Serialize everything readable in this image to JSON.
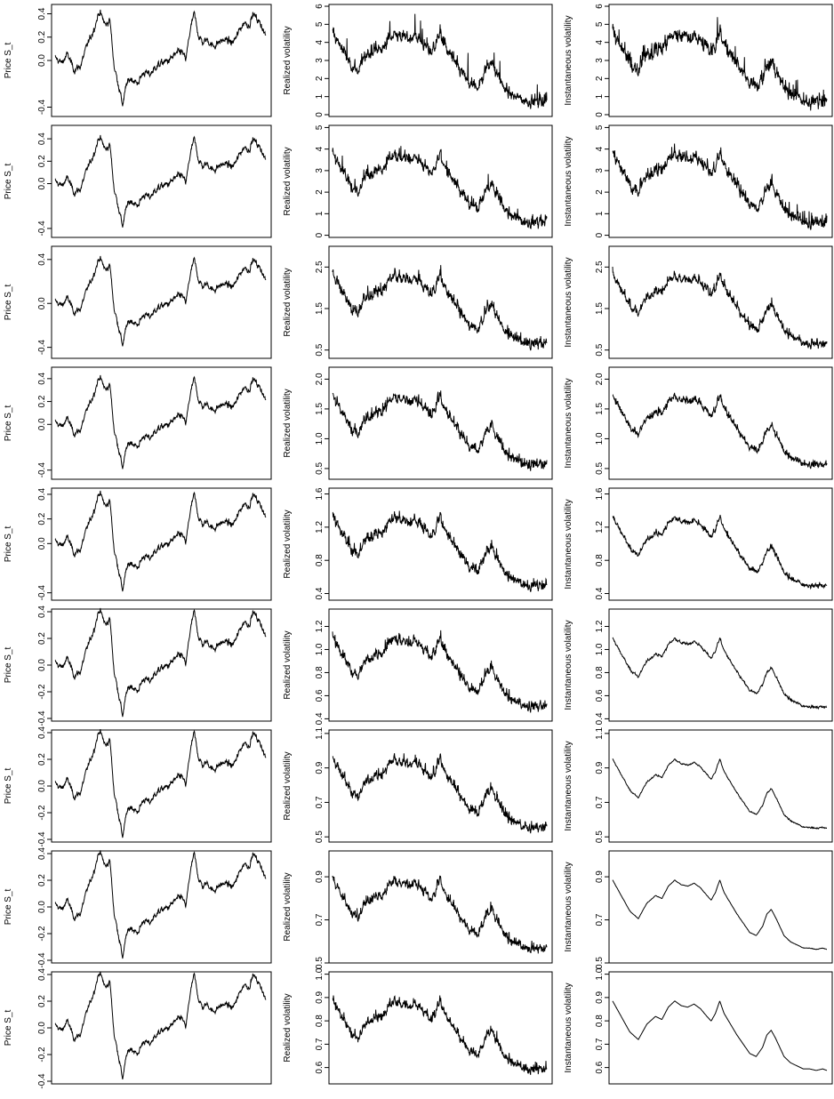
{
  "chart_data": {
    "type": "line",
    "layout": {
      "rows": 9,
      "columns": 3
    },
    "ylabels": [
      "Price S_t",
      "Realized volatility",
      "Instantaneous volatility"
    ],
    "columns": [
      {
        "ylabel": "Price S_t",
        "panels": [
          {
            "ylim": [
              -0.48,
              0.48
            ],
            "ticks": [
              {
                "v": 0.4,
                "label": "0.4"
              },
              {
                "v": 0.2,
                "label": "0.2"
              },
              {
                "v": 0.0,
                "label": "0.0"
              },
              {
                "v": -0.4,
                "label": "-0.4"
              }
            ]
          },
          {
            "ylim": [
              -0.48,
              0.52
            ],
            "ticks": [
              {
                "v": 0.4,
                "label": "0.4"
              },
              {
                "v": 0.2,
                "label": "0.2"
              },
              {
                "v": 0.0,
                "label": "0.0"
              },
              {
                "v": -0.4,
                "label": "-0.4"
              }
            ]
          },
          {
            "ylim": [
              -0.5,
              0.52
            ],
            "ticks": [
              {
                "v": 0.4,
                "label": "0.4"
              },
              {
                "v": 0.0,
                "label": "0.0"
              },
              {
                "v": -0.4,
                "label": "-0.4"
              }
            ]
          },
          {
            "ylim": [
              -0.48,
              0.5
            ],
            "ticks": [
              {
                "v": 0.4,
                "label": "0.4"
              },
              {
                "v": 0.2,
                "label": "0.2"
              },
              {
                "v": 0.0,
                "label": "0.0"
              },
              {
                "v": -0.4,
                "label": "-0.4"
              }
            ]
          },
          {
            "ylim": [
              -0.46,
              0.45
            ],
            "ticks": [
              {
                "v": 0.4,
                "label": "0.4"
              },
              {
                "v": 0.2,
                "label": "0.2"
              },
              {
                "v": 0.0,
                "label": "0.0"
              },
              {
                "v": -0.4,
                "label": "-0.4"
              }
            ]
          },
          {
            "ylim": [
              -0.42,
              0.42
            ],
            "ticks": [
              {
                "v": 0.4,
                "label": "0.4"
              },
              {
                "v": 0.2,
                "label": "0.2"
              },
              {
                "v": 0.0,
                "label": "0.0"
              },
              {
                "v": -0.2,
                "label": "-0.2"
              },
              {
                "v": -0.4,
                "label": "-0.4"
              }
            ]
          },
          {
            "ylim": [
              -0.42,
              0.42
            ],
            "ticks": [
              {
                "v": 0.4,
                "label": "0.4"
              },
              {
                "v": 0.2,
                "label": "0.2"
              },
              {
                "v": 0.0,
                "label": "0.0"
              },
              {
                "v": -0.2,
                "label": "-0.2"
              },
              {
                "v": -0.4,
                "label": "-0.4"
              }
            ]
          },
          {
            "ylim": [
              -0.42,
              0.42
            ],
            "ticks": [
              {
                "v": 0.4,
                "label": "0.4"
              },
              {
                "v": 0.2,
                "label": "0.2"
              },
              {
                "v": 0.0,
                "label": "0.0"
              },
              {
                "v": -0.2,
                "label": "-0.2"
              },
              {
                "v": -0.4,
                "label": "-0.4"
              }
            ]
          },
          {
            "ylim": [
              -0.42,
              0.42
            ],
            "ticks": [
              {
                "v": 0.4,
                "label": "0.4"
              },
              {
                "v": 0.2,
                "label": "0.2"
              },
              {
                "v": 0.0,
                "label": "0.0"
              },
              {
                "v": -0.2,
                "label": "-0.2"
              },
              {
                "v": -0.4,
                "label": "-0.4"
              }
            ]
          }
        ]
      },
      {
        "ylabel": "Realized volatility",
        "panels": [
          {
            "ylim": [
              -0.1,
              6.1
            ],
            "ticks": [
              {
                "v": 0,
                "label": "0"
              },
              {
                "v": 1,
                "label": "1"
              },
              {
                "v": 2,
                "label": "2"
              },
              {
                "v": 3,
                "label": "3"
              },
              {
                "v": 4,
                "label": "4"
              },
              {
                "v": 5,
                "label": "5"
              },
              {
                "v": 6,
                "label": "6"
              }
            ]
          },
          {
            "ylim": [
              -0.1,
              5.1
            ],
            "ticks": [
              {
                "v": 0,
                "label": "0"
              },
              {
                "v": 1,
                "label": "1"
              },
              {
                "v": 2,
                "label": "2"
              },
              {
                "v": 3,
                "label": "3"
              },
              {
                "v": 4,
                "label": "4"
              },
              {
                "v": 5,
                "label": "5"
              }
            ]
          },
          {
            "ylim": [
              0.3,
              3.0
            ],
            "ticks": [
              {
                "v": 0.5,
                "label": "0.5"
              },
              {
                "v": 1.5,
                "label": "1.5"
              },
              {
                "v": 2.5,
                "label": "2.5"
              }
            ]
          },
          {
            "ylim": [
              0.32,
              2.2
            ],
            "ticks": [
              {
                "v": 0.5,
                "label": "0.5"
              },
              {
                "v": 1.0,
                "label": "1.0"
              },
              {
                "v": 1.5,
                "label": "1.5"
              },
              {
                "v": 2.0,
                "label": "2.0"
              }
            ]
          },
          {
            "ylim": [
              0.32,
              1.67
            ],
            "ticks": [
              {
                "v": 0.4,
                "label": "0.4"
              },
              {
                "v": 0.8,
                "label": "0.8"
              },
              {
                "v": 1.2,
                "label": "1.2"
              },
              {
                "v": 1.6,
                "label": "1.6"
              }
            ]
          },
          {
            "ylim": [
              0.38,
              1.35
            ],
            "ticks": [
              {
                "v": 0.4,
                "label": "0.4"
              },
              {
                "v": 0.6,
                "label": "0.6"
              },
              {
                "v": 0.8,
                "label": "0.8"
              },
              {
                "v": 1.0,
                "label": "1.0"
              },
              {
                "v": 1.2,
                "label": "1.2"
              }
            ]
          },
          {
            "ylim": [
              0.47,
              1.12
            ],
            "ticks": [
              {
                "v": 0.5,
                "label": "0.5"
              },
              {
                "v": 0.7,
                "label": "0.7"
              },
              {
                "v": 0.9,
                "label": "0.9"
              },
              {
                "v": 1.1,
                "label": "1.1"
              }
            ]
          },
          {
            "ylim": [
              0.5,
              1.02
            ],
            "ticks": [
              {
                "v": 0.5,
                "label": "0.5"
              },
              {
                "v": 0.7,
                "label": "0.7"
              },
              {
                "v": 0.9,
                "label": "0.9"
              }
            ]
          },
          {
            "ylim": [
              0.53,
              1.01
            ],
            "ticks": [
              {
                "v": 0.6,
                "label": "0.6"
              },
              {
                "v": 0.7,
                "label": "0.7"
              },
              {
                "v": 0.8,
                "label": "0.8"
              },
              {
                "v": 0.9,
                "label": "0.9"
              },
              {
                "v": 1.0,
                "label": "1.0"
              }
            ]
          }
        ]
      },
      {
        "ylabel": "Instantaneous volatility",
        "panels": [
          {
            "ylim": [
              -0.1,
              6.1
            ],
            "ticks": [
              {
                "v": 0,
                "label": "0"
              },
              {
                "v": 1,
                "label": "1"
              },
              {
                "v": 2,
                "label": "2"
              },
              {
                "v": 3,
                "label": "3"
              },
              {
                "v": 4,
                "label": "4"
              },
              {
                "v": 5,
                "label": "5"
              },
              {
                "v": 6,
                "label": "6"
              }
            ]
          },
          {
            "ylim": [
              -0.1,
              5.1
            ],
            "ticks": [
              {
                "v": 0,
                "label": "0"
              },
              {
                "v": 1,
                "label": "1"
              },
              {
                "v": 2,
                "label": "2"
              },
              {
                "v": 3,
                "label": "3"
              },
              {
                "v": 4,
                "label": "4"
              },
              {
                "v": 5,
                "label": "5"
              }
            ]
          },
          {
            "ylim": [
              0.3,
              3.0
            ],
            "ticks": [
              {
                "v": 0.5,
                "label": "0.5"
              },
              {
                "v": 1.5,
                "label": "1.5"
              },
              {
                "v": 2.5,
                "label": "2.5"
              }
            ]
          },
          {
            "ylim": [
              0.32,
              2.2
            ],
            "ticks": [
              {
                "v": 0.5,
                "label": "0.5"
              },
              {
                "v": 1.0,
                "label": "1.0"
              },
              {
                "v": 1.5,
                "label": "1.5"
              },
              {
                "v": 2.0,
                "label": "2.0"
              }
            ]
          },
          {
            "ylim": [
              0.32,
              1.67
            ],
            "ticks": [
              {
                "v": 0.4,
                "label": "0.4"
              },
              {
                "v": 0.8,
                "label": "0.8"
              },
              {
                "v": 1.2,
                "label": "1.2"
              },
              {
                "v": 1.6,
                "label": "1.6"
              }
            ]
          },
          {
            "ylim": [
              0.38,
              1.35
            ],
            "ticks": [
              {
                "v": 0.4,
                "label": "0.4"
              },
              {
                "v": 0.6,
                "label": "0.6"
              },
              {
                "v": 0.8,
                "label": "0.8"
              },
              {
                "v": 1.0,
                "label": "1.0"
              },
              {
                "v": 1.2,
                "label": "1.2"
              }
            ]
          },
          {
            "ylim": [
              0.47,
              1.12
            ],
            "ticks": [
              {
                "v": 0.5,
                "label": "0.5"
              },
              {
                "v": 0.7,
                "label": "0.7"
              },
              {
                "v": 0.9,
                "label": "0.9"
              },
              {
                "v": 1.1,
                "label": "1.1"
              }
            ]
          },
          {
            "ylim": [
              0.5,
              1.02
            ],
            "ticks": [
              {
                "v": 0.5,
                "label": "0.5"
              },
              {
                "v": 0.7,
                "label": "0.7"
              },
              {
                "v": 0.9,
                "label": "0.9"
              }
            ]
          },
          {
            "ylim": [
              0.53,
              1.01
            ],
            "ticks": [
              {
                "v": 0.6,
                "label": "0.6"
              },
              {
                "v": 0.7,
                "label": "0.7"
              },
              {
                "v": 0.8,
                "label": "0.8"
              },
              {
                "v": 0.9,
                "label": "0.9"
              },
              {
                "v": 1.0,
                "label": "1.0"
              }
            ]
          }
        ]
      }
    ],
    "price_path": {
      "x": [
        0,
        0.03,
        0.06,
        0.09,
        0.12,
        0.15,
        0.18,
        0.21,
        0.24,
        0.26,
        0.28,
        0.3,
        0.32,
        0.34,
        0.36,
        0.39,
        0.42,
        0.45,
        0.48,
        0.51,
        0.54,
        0.57,
        0.6,
        0.62,
        0.64,
        0.66,
        0.68,
        0.7,
        0.72,
        0.75,
        0.78,
        0.81,
        0.84,
        0.86,
        0.88,
        0.9,
        0.92,
        0.94,
        0.96,
        0.98,
        1.0
      ],
      "y": [
        0.02,
        -0.02,
        0.05,
        -0.08,
        -0.05,
        0.12,
        0.25,
        0.42,
        0.3,
        0.35,
        -0.05,
        -0.2,
        -0.38,
        -0.2,
        -0.15,
        -0.2,
        -0.1,
        -0.12,
        -0.05,
        -0.02,
        0.0,
        0.05,
        0.08,
        0.0,
        0.25,
        0.4,
        0.22,
        0.15,
        0.18,
        0.12,
        0.16,
        0.18,
        0.15,
        0.2,
        0.28,
        0.33,
        0.3,
        0.4,
        0.35,
        0.3,
        0.2
      ]
    },
    "volatility_path": {
      "x": [
        0,
        0.04,
        0.08,
        0.12,
        0.16,
        0.2,
        0.23,
        0.26,
        0.29,
        0.32,
        0.35,
        0.38,
        0.41,
        0.44,
        0.46,
        0.48,
        0.5,
        0.52,
        0.55,
        0.58,
        0.61,
        0.64,
        0.67,
        0.7,
        0.72,
        0.74,
        0.76,
        0.78,
        0.8,
        0.83,
        0.86,
        0.89,
        0.92,
        0.95,
        0.98,
        1.0
      ],
      "y": [
        1.0,
        0.9,
        0.8,
        0.75,
        0.85,
        0.9,
        0.88,
        0.96,
        1.0,
        0.97,
        0.96,
        0.98,
        0.95,
        0.9,
        0.87,
        0.92,
        1.0,
        0.92,
        0.85,
        0.78,
        0.72,
        0.66,
        0.64,
        0.7,
        0.78,
        0.81,
        0.76,
        0.7,
        0.64,
        0.6,
        0.58,
        0.56,
        0.56,
        0.55,
        0.56,
        0.55
      ]
    }
  }
}
